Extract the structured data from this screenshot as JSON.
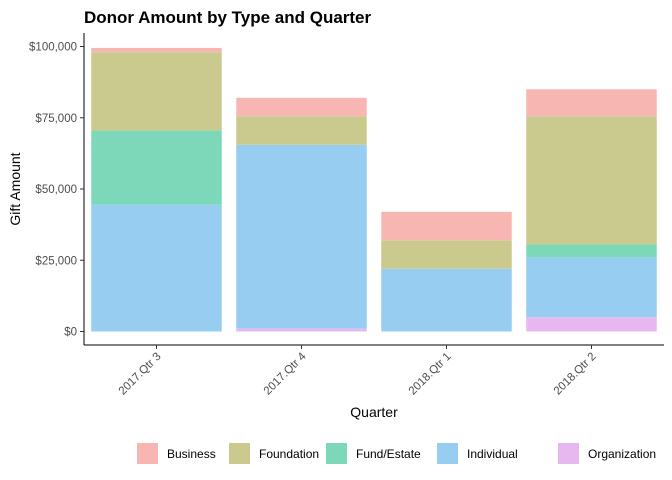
{
  "chart_data": {
    "type": "bar",
    "stacked": true,
    "title": "Donor Amount by Type and Quarter",
    "xlabel": "Quarter",
    "ylabel": "Gift Amount",
    "categories": [
      "2017.Qtr 3",
      "2017.Qtr 4",
      "2018.Qtr 1",
      "2018.Qtr 2"
    ],
    "ylim": [
      0,
      100000
    ],
    "yticks": [
      0,
      25000,
      50000,
      75000,
      100000
    ],
    "ytick_labels": [
      "$0",
      "$25,000",
      "$50,000",
      "$75,000",
      "$100,000"
    ],
    "grid": false,
    "legend_position": "bottom",
    "series": [
      {
        "name": "Organization",
        "color": "#E7B7EF",
        "values": [
          0,
          1000,
          0,
          5000
        ]
      },
      {
        "name": "Individual",
        "color": "#96CDF0",
        "values": [
          44500,
          64500,
          22000,
          21000
        ]
      },
      {
        "name": "Fund/Estate",
        "color": "#7DD8B9",
        "values": [
          26000,
          0,
          0,
          4500
        ]
      },
      {
        "name": "Foundation",
        "color": "#CBCA8E",
        "values": [
          27500,
          10000,
          10000,
          45000
        ]
      },
      {
        "name": "Business",
        "color": "#F8B6B3",
        "values": [
          1500,
          6500,
          10000,
          9500
        ]
      }
    ],
    "legend_order": [
      "Business",
      "Foundation",
      "Fund/Estate",
      "Individual",
      "Organization"
    ]
  }
}
